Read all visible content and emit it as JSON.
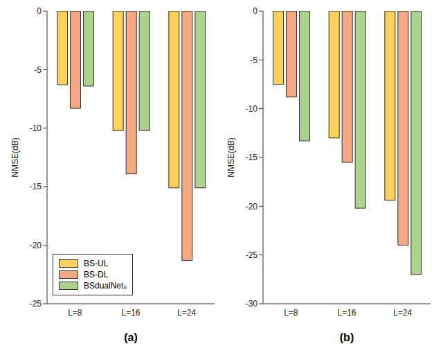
{
  "chart_data": [
    {
      "type": "bar",
      "title": "(a)",
      "y_label": "NMSE(dB)",
      "categories": [
        "L=8",
        "L=16",
        "L=24"
      ],
      "series": [
        {
          "name": "BS-UL",
          "color": "#fdd05a",
          "values": [
            -6.3,
            -10.2,
            -15.1
          ]
        },
        {
          "name": "BS-DL",
          "color": "#f5a982",
          "values": [
            -8.3,
            -13.9,
            -21.3
          ]
        },
        {
          "name": "BSdualNet₀",
          "color": "#acd28e",
          "values": [
            -6.4,
            -10.2,
            -15.1
          ]
        }
      ],
      "ylim": [
        -25,
        0
      ],
      "yticks": [
        -25,
        -20,
        -15,
        -10,
        -5,
        0
      ],
      "grid": false,
      "legend": "lower left"
    },
    {
      "type": "bar",
      "title": "(b)",
      "y_label": "NMSE(dB)",
      "categories": [
        "L=8",
        "L=16",
        "L=24"
      ],
      "series": [
        {
          "name": "BS-UL",
          "color": "#fdd05a",
          "values": [
            -7.5,
            -13.0,
            -19.4
          ]
        },
        {
          "name": "BS-DL",
          "color": "#f5a982",
          "values": [
            -8.8,
            -15.5,
            -24.0
          ]
        },
        {
          "name": "BSdualNet₀",
          "color": "#acd28e",
          "values": [
            -13.3,
            -20.2,
            -27.0
          ]
        }
      ],
      "ylim": [
        -30,
        0
      ],
      "yticks": [
        -30,
        -25,
        -20,
        -15,
        -10,
        -5,
        0
      ],
      "grid": false
    }
  ]
}
